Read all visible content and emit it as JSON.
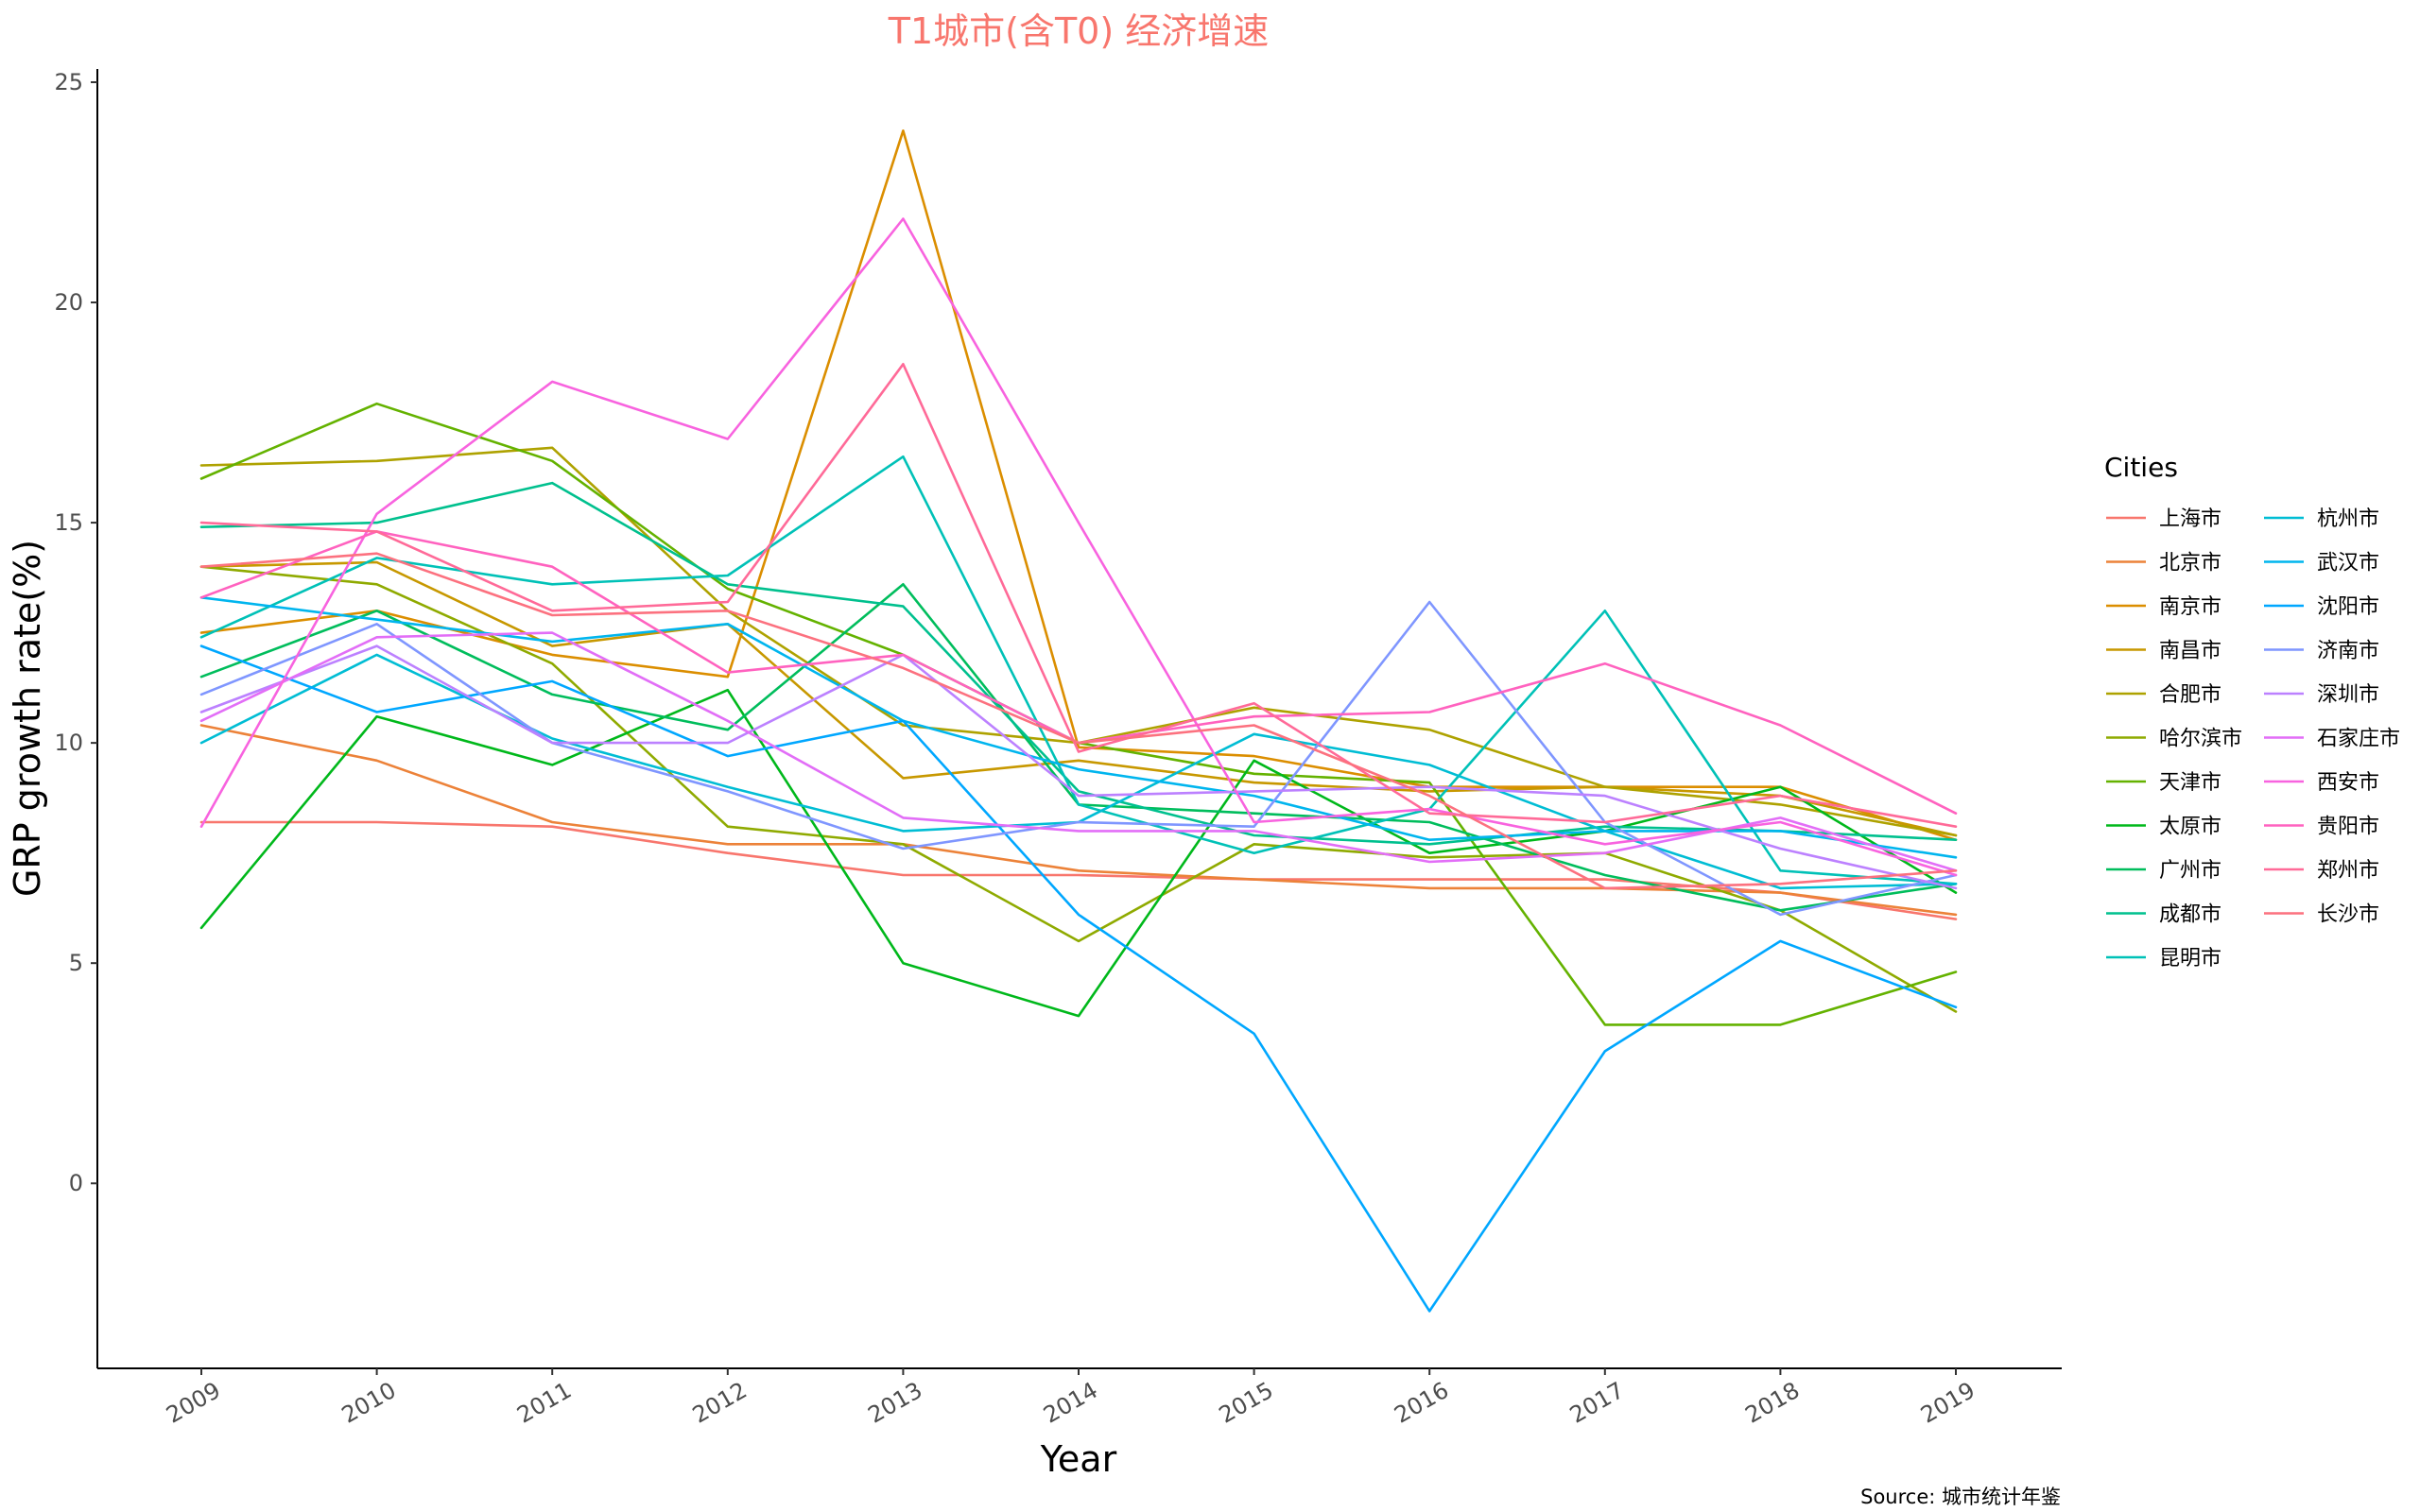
{
  "chart_data": {
    "type": "line",
    "title": "T1城市(含T0) 经济增速",
    "xlabel": "Year",
    "ylabel": "GRP growth rate(%)",
    "caption": "Source: 城市统计年鉴",
    "legend_title": "Cities",
    "legend_position": "right",
    "grid": false,
    "x": [
      2009,
      2010,
      2011,
      2012,
      2013,
      2014,
      2015,
      2016,
      2017,
      2018,
      2019
    ],
    "ylim": [
      -4.2,
      25.3
    ],
    "yticks": [
      0,
      5,
      10,
      15,
      20,
      25
    ],
    "series": [
      {
        "name": "上海市",
        "color": "#F8766D",
        "values": [
          8.2,
          8.2,
          8.1,
          7.5,
          7.0,
          7.0,
          6.9,
          6.9,
          6.9,
          6.6,
          6.0
        ]
      },
      {
        "name": "北京市",
        "color": "#EC8239",
        "values": [
          10.4,
          9.6,
          8.2,
          7.7,
          7.7,
          7.1,
          6.9,
          6.7,
          6.7,
          6.6,
          6.1
        ]
      },
      {
        "name": "南京市",
        "color": "#DB8E00",
        "values": [
          12.5,
          13.0,
          12.0,
          11.5,
          23.9,
          9.9,
          9.7,
          9.0,
          9.0,
          9.0,
          7.8
        ]
      },
      {
        "name": "南昌市",
        "color": "#C79800",
        "values": [
          14.0,
          14.1,
          12.2,
          12.7,
          9.2,
          9.6,
          9.1,
          8.9,
          9.0,
          8.8,
          7.9
        ]
      },
      {
        "name": "合肥市",
        "color": "#AEA200",
        "values": [
          16.3,
          16.4,
          16.7,
          13.0,
          10.4,
          10.0,
          10.8,
          10.3,
          9.0,
          8.6,
          7.9
        ]
      },
      {
        "name": "哈尔滨市",
        "color": "#8FAA00",
        "values": [
          14.0,
          13.6,
          11.8,
          8.1,
          7.7,
          5.5,
          7.7,
          7.4,
          7.5,
          6.2,
          3.9
        ]
      },
      {
        "name": "天津市",
        "color": "#64B200",
        "values": [
          16.0,
          17.7,
          16.4,
          13.5,
          12.0,
          10.0,
          9.3,
          9.1,
          3.6,
          3.6,
          4.8
        ]
      },
      {
        "name": "太原市",
        "color": "#00B81B",
        "values": [
          5.8,
          10.6,
          9.5,
          11.2,
          5.0,
          3.8,
          9.6,
          7.5,
          8.0,
          9.0,
          6.6
        ]
      },
      {
        "name": "广州市",
        "color": "#00BD5C",
        "values": [
          11.5,
          13.0,
          11.1,
          10.3,
          13.6,
          8.6,
          8.4,
          8.2,
          7.0,
          6.2,
          6.8
        ]
      },
      {
        "name": "成都市",
        "color": "#00C08E",
        "values": [
          14.9,
          15.0,
          15.9,
          13.6,
          13.1,
          8.9,
          7.9,
          7.7,
          8.1,
          8.0,
          7.8
        ]
      },
      {
        "name": "昆明市",
        "color": "#00C1B7",
        "values": [
          12.4,
          14.2,
          13.6,
          13.8,
          16.5,
          8.6,
          7.5,
          8.5,
          13.0,
          7.1,
          6.8
        ]
      },
      {
        "name": "杭州市",
        "color": "#00BDD4",
        "values": [
          10.0,
          12.0,
          10.1,
          9.0,
          8.0,
          8.2,
          10.2,
          9.5,
          8.0,
          6.7,
          6.8
        ]
      },
      {
        "name": "武汉市",
        "color": "#00B5EE",
        "values": [
          13.3,
          12.8,
          12.3,
          12.7,
          10.5,
          9.4,
          8.8,
          7.8,
          8.0,
          8.0,
          7.4
        ]
      },
      {
        "name": "沈阳市",
        "color": "#00A7FF",
        "values": [
          12.2,
          10.7,
          11.4,
          9.7,
          10.5,
          6.1,
          3.4,
          -2.9,
          3.0,
          5.5,
          4.0
        ]
      },
      {
        "name": "济南市",
        "color": "#7F96FF",
        "values": [
          11.1,
          12.7,
          10.0,
          8.9,
          7.6,
          8.2,
          8.1,
          13.2,
          8.2,
          6.1,
          7.0
        ]
      },
      {
        "name": "深圳市",
        "color": "#BC81FF",
        "values": [
          10.7,
          12.2,
          10.0,
          10.0,
          12.0,
          8.8,
          8.9,
          9.0,
          8.8,
          7.6,
          6.7
        ]
      },
      {
        "name": "石家庄市",
        "color": "#E26EF7",
        "values": [
          10.5,
          12.4,
          12.5,
          10.5,
          8.3,
          8.0,
          8.0,
          7.3,
          7.5,
          8.3,
          7.1
        ]
      },
      {
        "name": "西安市",
        "color": "#F863DF",
        "values": [
          8.1,
          15.2,
          18.2,
          16.9,
          21.9,
          15.0,
          8.2,
          8.5,
          7.7,
          8.2,
          7.0
        ]
      },
      {
        "name": "贵阳市",
        "color": "#FF62BF",
        "values": [
          13.3,
          14.8,
          14.0,
          11.6,
          12.0,
          10.0,
          10.6,
          10.7,
          11.8,
          10.4,
          8.4
        ]
      },
      {
        "name": "郑州市",
        "color": "#FF6A98",
        "values": [
          15.0,
          14.8,
          13.0,
          13.2,
          18.6,
          9.8,
          10.9,
          8.4,
          8.2,
          8.8,
          8.1
        ]
      },
      {
        "name": "长沙市",
        "color": "#FC717F",
        "values": [
          14.0,
          14.3,
          12.9,
          13.0,
          11.7,
          10.0,
          10.4,
          8.8,
          6.7,
          6.8,
          7.1
        ]
      }
    ]
  }
}
